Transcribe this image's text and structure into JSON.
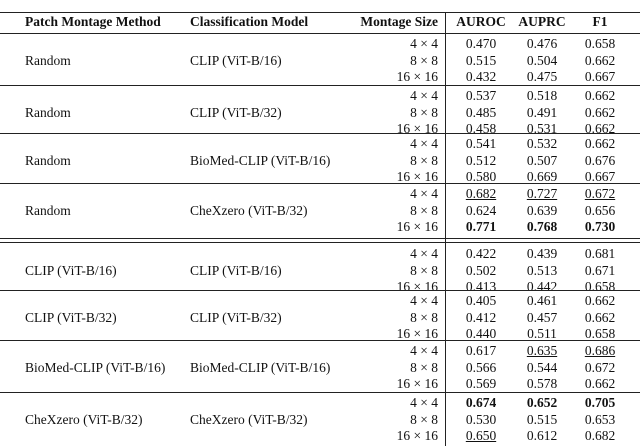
{
  "table": {
    "header": [
      "Patch Montage Method",
      "Classification Model",
      "Montage Size",
      "AUROC",
      "AUPRC",
      "F1"
    ],
    "groups": [
      {
        "method": "Random",
        "model": "CLIP (ViT-B/16)",
        "rows": [
          [
            "4 × 4",
            "0.470",
            "0.476",
            "0.658"
          ],
          [
            "8 × 8",
            "0.515",
            "0.504",
            "0.662"
          ],
          [
            "16 × 16",
            "0.432",
            "0.475",
            "0.667"
          ]
        ]
      },
      {
        "method": "Random",
        "model": "CLIP (ViT-B/32)",
        "rows": [
          [
            "4 × 4",
            "0.537",
            "0.518",
            "0.662"
          ],
          [
            "8 × 8",
            "0.485",
            "0.491",
            "0.662"
          ],
          [
            "16 × 16",
            "0.458",
            "0.531",
            "0.662"
          ]
        ]
      },
      {
        "method": "Random",
        "model": "BioMed-CLIP (ViT-B/16)",
        "rows": [
          [
            "4 × 4",
            "0.541",
            "0.532",
            "0.662"
          ],
          [
            "8 × 8",
            "0.512",
            "0.507",
            "0.676"
          ],
          [
            "16 × 16",
            "0.580",
            "0.669",
            "0.667"
          ]
        ]
      },
      {
        "method": "Random",
        "model": "CheXzero (ViT-B/32)",
        "rows": [
          [
            "4 × 4",
            "0.682",
            "0.727",
            "0.672"
          ],
          [
            "8 × 8",
            "0.624",
            "0.639",
            "0.656"
          ],
          [
            "16 × 16",
            "0.771",
            "0.768",
            "0.730"
          ]
        ]
      },
      {
        "method": "CLIP (ViT-B/16)",
        "model": "CLIP (ViT-B/16)",
        "rows": [
          [
            "4 × 4",
            "0.422",
            "0.439",
            "0.681"
          ],
          [
            "8 × 8",
            "0.502",
            "0.513",
            "0.671"
          ],
          [
            "16 × 16",
            "0.413",
            "0.442",
            "0.658"
          ]
        ]
      },
      {
        "method": "CLIP (ViT-B/32)",
        "model": "CLIP (ViT-B/32)",
        "rows": [
          [
            "4 × 4",
            "0.405",
            "0.461",
            "0.662"
          ],
          [
            "8 × 8",
            "0.412",
            "0.457",
            "0.662"
          ],
          [
            "16 × 16",
            "0.440",
            "0.511",
            "0.658"
          ]
        ]
      },
      {
        "method": "BioMed-CLIP (ViT-B/16)",
        "model": "BioMed-CLIP (ViT-B/16)",
        "rows": [
          [
            "4 × 4",
            "0.617",
            "0.635",
            "0.686"
          ],
          [
            "8 × 8",
            "0.566",
            "0.544",
            "0.672"
          ],
          [
            "16 × 16",
            "0.569",
            "0.578",
            "0.662"
          ]
        ]
      },
      {
        "method": "CheXzero (ViT-B/32)",
        "model": "CheXzero (ViT-B/32)",
        "rows": [
          [
            "4 × 4",
            "0.674",
            "0.652",
            "0.705"
          ],
          [
            "8 × 8",
            "0.530",
            "0.515",
            "0.653"
          ],
          [
            "16 × 16",
            "0.650",
            "0.612",
            "0.682"
          ]
        ]
      }
    ]
  }
}
